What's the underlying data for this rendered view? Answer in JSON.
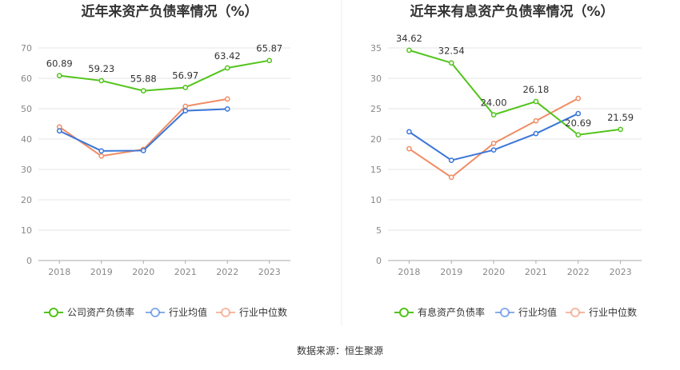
{
  "footer": {
    "source": "数据来源：恒生聚源"
  },
  "chart_data": [
    {
      "type": "line",
      "title": "近年来资产负债率情况（%）",
      "x": [
        "2018",
        "2019",
        "2020",
        "2021",
        "2022",
        "2023"
      ],
      "ylim": [
        0,
        70
      ],
      "yticks": [
        0,
        10,
        20,
        30,
        40,
        50,
        60,
        70
      ],
      "grid": true,
      "legend_position": "bottom",
      "series": [
        {
          "name": "公司资产负债率",
          "color": "#52c41a",
          "values": [
            60.89,
            59.23,
            55.88,
            56.97,
            63.42,
            65.87
          ],
          "labels": [
            "60.89",
            "59.23",
            "55.88",
            "56.97",
            "63.42",
            "65.87"
          ]
        },
        {
          "name": "行业均值",
          "color": "#3a76d8",
          "values": [
            42.7,
            36.1,
            36.2,
            49.3,
            49.9,
            null
          ]
        },
        {
          "name": "行业中位数",
          "color": "#f08c64",
          "values": [
            44.0,
            34.4,
            36.6,
            50.8,
            53.2,
            null
          ]
        }
      ]
    },
    {
      "type": "line",
      "title": "近年来有息资产负债率情况（%）",
      "x": [
        "2018",
        "2019",
        "2020",
        "2021",
        "2022",
        "2023"
      ],
      "ylim": [
        0,
        35
      ],
      "yticks": [
        0,
        5,
        10,
        15,
        20,
        25,
        30,
        35
      ],
      "grid": true,
      "legend_position": "bottom",
      "series": [
        {
          "name": "有息资产负债率",
          "color": "#52c41a",
          "values": [
            34.62,
            32.54,
            24.0,
            26.18,
            20.69,
            21.59
          ],
          "labels": [
            "34.62",
            "32.54",
            "24.00",
            "26.18",
            "20.69",
            "21.59"
          ]
        },
        {
          "name": "行业均值",
          "color": "#3a76d8",
          "values": [
            21.2,
            16.5,
            18.2,
            20.9,
            24.2,
            null
          ]
        },
        {
          "name": "行业中位数",
          "color": "#f08c64",
          "values": [
            18.4,
            13.7,
            19.3,
            23.0,
            26.7,
            null
          ]
        }
      ]
    }
  ]
}
